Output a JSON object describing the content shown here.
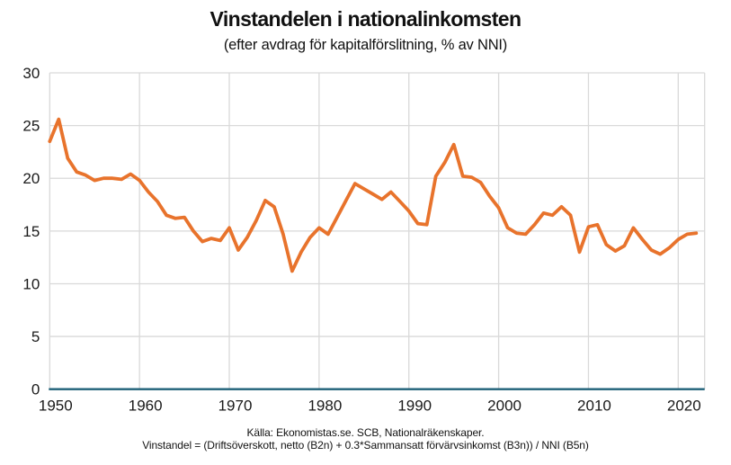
{
  "chart": {
    "title": "Vinstandelen i nationalinkomsten",
    "subtitle": "(efter avdrag för kapitalförslitning, % av NNI)",
    "source": "Källa: Ekonomistas.se. SCB, Nationalräkenskaper.",
    "formula": "Vinstandel = (Driftsöverskott, netto (B2n) + 0.3*Sammansatt förvärvsinkomst (B3n)) / NNI (B5n)"
  },
  "chart_data": {
    "type": "line",
    "title": "Vinstandelen i nationalinkomsten",
    "subtitle": "(efter avdrag för kapitalförslitning, % av NNI)",
    "series_name": "Vinstandel, % av NNI",
    "x": [
      1950,
      1951,
      1952,
      1953,
      1954,
      1955,
      1956,
      1957,
      1958,
      1959,
      1960,
      1961,
      1962,
      1963,
      1964,
      1965,
      1966,
      1967,
      1968,
      1969,
      1970,
      1971,
      1972,
      1973,
      1974,
      1975,
      1976,
      1977,
      1978,
      1979,
      1980,
      1981,
      1982,
      1983,
      1984,
      1985,
      1986,
      1987,
      1988,
      1989,
      1990,
      1991,
      1992,
      1993,
      1994,
      1995,
      1996,
      1997,
      1998,
      1999,
      2000,
      2001,
      2002,
      2003,
      2004,
      2005,
      2006,
      2007,
      2008,
      2009,
      2010,
      2011,
      2012,
      2013,
      2014,
      2015,
      2016,
      2017,
      2018,
      2019,
      2020,
      2021,
      2022
    ],
    "values": [
      23.5,
      25.6,
      21.9,
      20.6,
      20.3,
      19.8,
      20.0,
      20.0,
      19.9,
      20.4,
      19.8,
      18.7,
      17.8,
      16.5,
      16.2,
      16.3,
      15.0,
      14.0,
      14.3,
      14.1,
      15.3,
      13.2,
      14.4,
      16.0,
      17.9,
      17.3,
      14.7,
      11.2,
      13.0,
      14.4,
      15.3,
      14.7,
      16.3,
      17.9,
      19.5,
      19.0,
      18.5,
      18.0,
      18.7,
      17.8,
      16.9,
      15.7,
      15.6,
      20.2,
      21.5,
      23.2,
      20.2,
      20.1,
      19.6,
      18.3,
      17.2,
      15.3,
      14.8,
      14.7,
      15.6,
      16.7,
      16.5,
      17.3,
      16.5,
      13.0,
      15.4,
      15.6,
      13.7,
      13.1,
      13.6,
      15.3,
      14.2,
      13.2,
      12.8,
      13.4,
      14.2,
      14.7,
      14.8
    ],
    "xlabel": "",
    "ylabel": "",
    "xlim": [
      1950,
      2022
    ],
    "ylim": [
      0,
      30
    ],
    "yticks": [
      0,
      5,
      10,
      15,
      20,
      25,
      30
    ],
    "xticks": [
      1950,
      1960,
      1970,
      1980,
      1990,
      2000,
      2010,
      2020
    ],
    "grid": true,
    "legend": false,
    "colors": {
      "line": "#E8732C",
      "axis": "#1F6078",
      "grid": "#D9D9D9",
      "text": "#1A1A1A"
    }
  }
}
